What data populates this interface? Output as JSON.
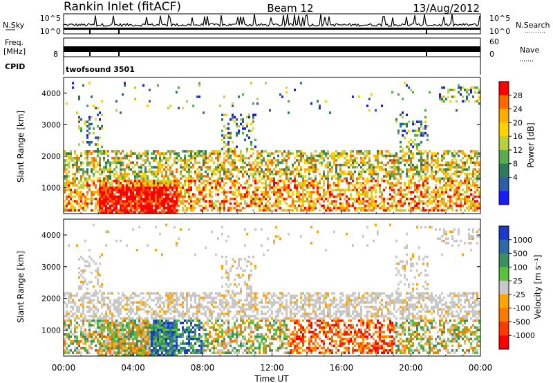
{
  "header": {
    "station": "Rankin Inlet (fitACF)",
    "beam": "Beam 12",
    "date": "13/Aug/2012"
  },
  "strips": {
    "nsky_label": "N.Sky",
    "nsky_ticks": [
      "10^5",
      "10^0"
    ],
    "nsearch_label": "N.Search",
    "nsearch_ticks": [
      "10^5",
      "10^0"
    ],
    "freq_label_1": "Freq.",
    "freq_label_2": "[MHz]",
    "freq_ticks": [
      "8"
    ],
    "nave_label": "Nave",
    "nave_ticks": [
      "60",
      "0"
    ],
    "cpid_label": "CPID",
    "cpid_value": "twofsound 3501"
  },
  "chart_data": [
    {
      "type": "heatmap",
      "panel": "power",
      "ylabel": "Slant Range [km]",
      "yticks": [
        1000,
        2000,
        3000,
        4000
      ],
      "ylim": [
        180,
        4500
      ],
      "x_tick_labels": [
        "00:00",
        "04:00",
        "08:00",
        "12:00",
        "16:00",
        "20:00",
        "00:00"
      ],
      "xlabel": "Time UT",
      "colorbar": {
        "label": "Power [dB]",
        "ticks": [
          "28",
          "24",
          "20",
          "16",
          "12",
          "8",
          "4"
        ],
        "colors": [
          "#ff0000",
          "#ff6a00",
          "#ffae00",
          "#ffd200",
          "#b8d040",
          "#5aac50",
          "#2f7a5a",
          "#2c5fa8",
          "#1a1aff"
        ]
      },
      "description_of_bands": [
        {
          "range": [
            300,
            800
          ],
          "level": "high",
          "hours": [
            3,
            6
          ]
        },
        {
          "range": [
            1200,
            2100
          ],
          "level": "medium",
          "hours": [
            0,
            24
          ]
        }
      ]
    },
    {
      "type": "heatmap",
      "panel": "velocity",
      "ylabel": "Slant Range [km]",
      "yticks": [
        1000,
        2000,
        3000,
        4000
      ],
      "ylim": [
        180,
        4500
      ],
      "x_tick_labels": [
        "00:00",
        "04:00",
        "08:00",
        "12:00",
        "16:00",
        "20:00",
        "00:00"
      ],
      "xlabel": "Time UT",
      "colorbar": {
        "label": "Velocity [m s⁻¹]",
        "ticks": [
          "1000",
          "500",
          "100",
          "25",
          "-25",
          "-100",
          "-500",
          "-1000"
        ],
        "colors": [
          "#1a3cc8",
          "#2f6aa8",
          "#3b8f60",
          "#58c23a",
          "#c8c8c8",
          "#ffa500",
          "#ff7a00",
          "#ff3a00",
          "#ff0000"
        ]
      }
    }
  ]
}
